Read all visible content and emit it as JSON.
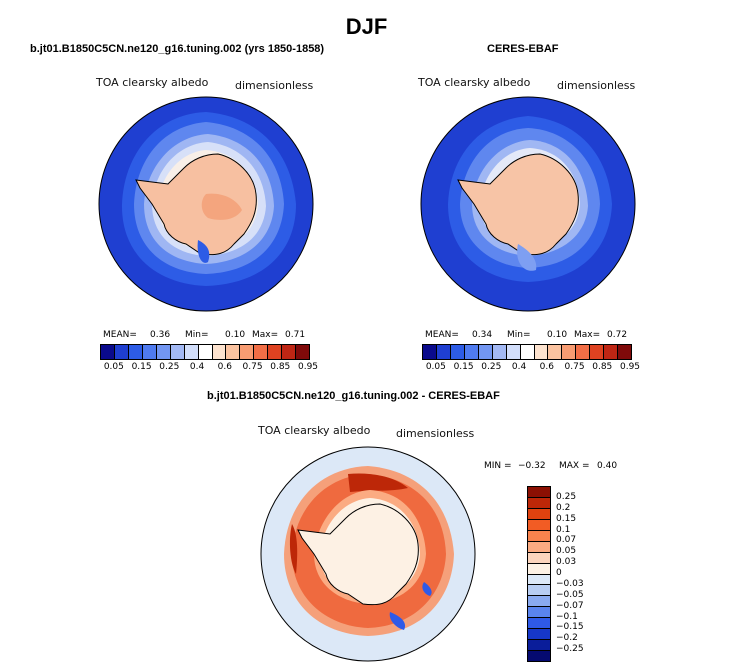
{
  "season": "DJF",
  "model_title": "b.jt01.B1850C5CN.ne120_g16.tuning.002 (yrs 1850-1858)",
  "obs_title": "CERES-EBAF",
  "diff_title": "b.jt01.B1850C5CN.ne120_g16.tuning.002 - CERES-EBAF",
  "variable": "TOA clearsky albedo",
  "units": "dimensionless",
  "panels": {
    "model": {
      "mean_label": "MEAN=",
      "mean": "0.36",
      "min_label": "Min=",
      "min": "0.10",
      "max_label": "Max=",
      "max": "0.71"
    },
    "obs": {
      "mean_label": "MEAN=",
      "mean": "0.34",
      "min_label": "Min=",
      "min": "0.10",
      "max_label": "Max=",
      "max": "0.72"
    },
    "diff": {
      "min_label": "MIN =",
      "min": "−0.32",
      "max_label": "MAX =",
      "max": "0.40"
    }
  },
  "colorbar_abs": {
    "colors": [
      "#0a0a8c",
      "#1f3fd1",
      "#2d5ce6",
      "#4f7bf0",
      "#7296f2",
      "#a3b9f5",
      "#d2defb",
      "#ffffff",
      "#fde3cf",
      "#fbc3a0",
      "#f89c72",
      "#f26e46",
      "#de4221",
      "#bf2614",
      "#7f0a0a"
    ],
    "ticks": [
      "0.05",
      "0.15",
      "0.25",
      "0.4",
      "0.6",
      "0.75",
      "0.85",
      "0.95"
    ]
  },
  "colorbar_diff": {
    "colors": [
      "#8b1003",
      "#bd2708",
      "#e0420f",
      "#f25c24",
      "#f9834d",
      "#fbab82",
      "#fcd4bc",
      "#fdf1e4",
      "#dce8f7",
      "#b8cdf2",
      "#8aaaf0",
      "#5a84ee",
      "#2f5ae8",
      "#1637c8",
      "#0a1d9a",
      "#050a70"
    ],
    "ticks": [
      "0.25",
      "0.2",
      "0.15",
      "0.1",
      "0.07",
      "0.05",
      "0.03",
      "0",
      "−0.03",
      "−0.05",
      "−0.07",
      "−0.1",
      "−0.15",
      "−0.2",
      "−0.25"
    ]
  }
}
